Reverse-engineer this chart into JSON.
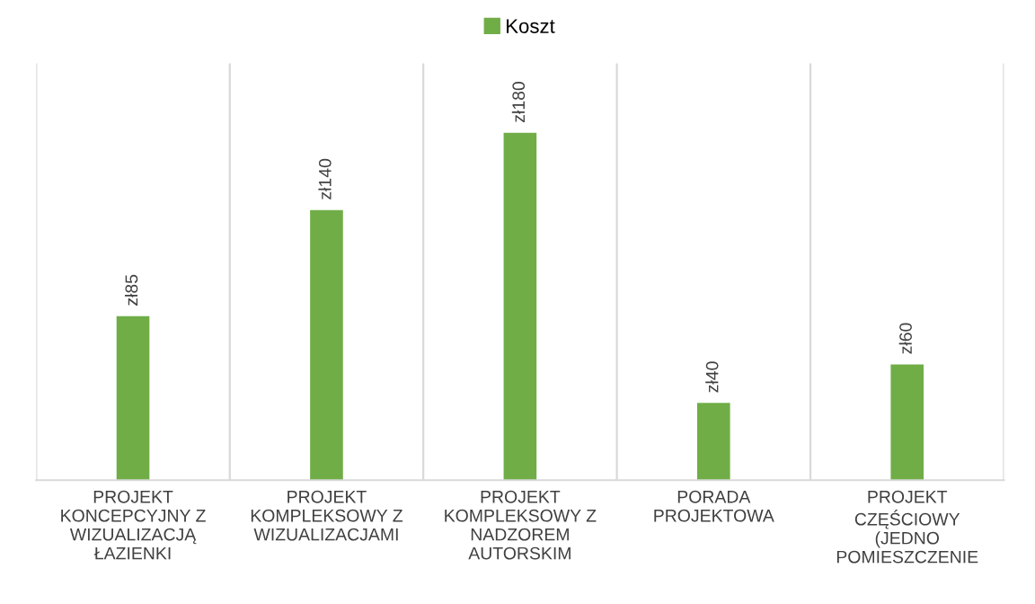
{
  "chart_data": {
    "type": "bar",
    "categories": [
      "PROJEKT KONCEPCYJNY Z WIZUALIZACJĄ ŁAZIENKI",
      "PROJEKT KOMPLEKSOWY Z WIZUALIZACJAMI",
      "PROJEKT KOMPLEKSOWY Z NADZOREM AUTORSKIM",
      "PORADA PROJEKTOWA",
      "PROJEKT CZĘŚCIOWY (JEDNO POMIESZCZENIE"
    ],
    "series": [
      {
        "name": "Koszt",
        "color": "#70ad47",
        "values": [
          85,
          140,
          180,
          40,
          60
        ],
        "value_labels": [
          "zł85",
          "zł140",
          "zł180",
          "zł40",
          "zł60"
        ]
      }
    ],
    "grid": "x",
    "legend": "top"
  }
}
